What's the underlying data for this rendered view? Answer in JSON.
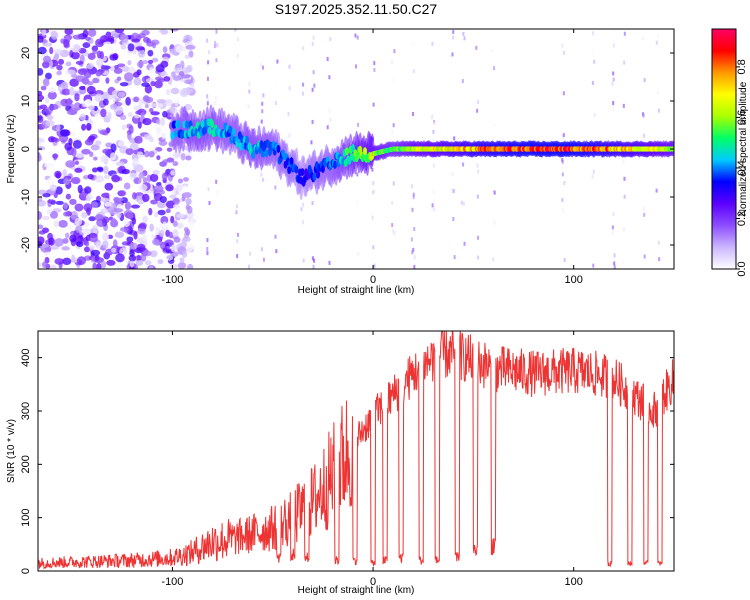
{
  "page": {
    "title": "S197.2025.352.11.50.C27"
  },
  "chart_data": [
    {
      "type": "heatmap",
      "title": "S197.2025.352.11.50.C27",
      "xlabel": "Height of straight line (km)",
      "ylabel": "Frequency (Hz)",
      "xlim": [
        -167,
        150
      ],
      "ylim": [
        -25,
        25
      ],
      "xticks": [
        -100,
        0,
        100
      ],
      "yticks": [
        -20,
        -10,
        0,
        10,
        20
      ],
      "colorbar": {
        "label": "Normalized spectral amplitude",
        "range": [
          0,
          0.95
        ],
        "ticks": [
          "0.0",
          "0.2",
          "0.4",
          "0.6",
          "0.8"
        ],
        "colors": [
          "#ffffff",
          "#cbb6ff",
          "#8d4dff",
          "#5b00ff",
          "#0000ff",
          "#00ccff",
          "#00ff66",
          "#aaff00",
          "#ffff00",
          "#ff9900",
          "#ff0000",
          "#ff0066"
        ]
      },
      "ridge": {
        "x": [
          -100,
          -90,
          -80,
          -70,
          -60,
          -50,
          -40,
          -35,
          -30,
          -20,
          -10,
          0,
          10,
          20,
          40,
          60,
          80,
          100,
          120,
          140,
          150
        ],
        "freq": [
          4,
          4,
          4.5,
          3,
          0,
          0,
          -4,
          -6,
          -5,
          -3,
          -1,
          -1,
          0,
          0,
          0,
          0,
          0,
          0,
          0,
          0,
          0
        ],
        "amplitude": [
          0.45,
          0.5,
          0.5,
          0.45,
          0.5,
          0.45,
          0.4,
          0.35,
          0.4,
          0.45,
          0.6,
          0.7,
          0.6,
          0.7,
          0.8,
          0.9,
          0.95,
          0.95,
          0.85,
          0.75,
          0.7
        ]
      },
      "noise_region": {
        "x_from": -167,
        "x_to": -100,
        "amplitude": 0.3
      }
    },
    {
      "type": "line",
      "xlabel": "Height of straight line (km)",
      "ylabel": "SNR (10 * v/v)",
      "xlim": [
        -167,
        150
      ],
      "ylim": [
        0,
        450
      ],
      "xticks": [
        -100,
        0,
        100
      ],
      "yticks": [
        0,
        100,
        200,
        300,
        400
      ],
      "color": "#ee3333",
      "envelope": {
        "x": [
          -167,
          -120,
          -100,
          -90,
          -80,
          -70,
          -60,
          -50,
          -40,
          -30,
          -20,
          -10,
          0,
          10,
          20,
          30,
          40,
          60,
          80,
          100,
          110,
          120,
          130,
          140,
          150
        ],
        "snr": [
          15,
          20,
          25,
          35,
          55,
          60,
          70,
          80,
          100,
          130,
          180,
          240,
          290,
          330,
          370,
          400,
          410,
          380,
          370,
          375,
          370,
          360,
          330,
          300,
          360
        ]
      },
      "dropouts": [
        {
          "x": -47,
          "snr": 25
        },
        {
          "x": -40,
          "snr": 30
        },
        {
          "x": -33,
          "snr": 25
        },
        {
          "x": -18,
          "snr": 20
        },
        {
          "x": -9,
          "snr": 20
        },
        {
          "x": 0,
          "snr": 15
        },
        {
          "x": 6,
          "snr": 20
        },
        {
          "x": 14,
          "snr": 25
        },
        {
          "x": 24,
          "snr": 20
        },
        {
          "x": 32,
          "snr": 20
        },
        {
          "x": 42,
          "snr": 25
        },
        {
          "x": 51,
          "snr": 40
        },
        {
          "x": 60,
          "snr": 50
        },
        {
          "x": 118,
          "snr": 15
        },
        {
          "x": 128,
          "snr": 15
        },
        {
          "x": 136,
          "snr": 15
        },
        {
          "x": 143,
          "snr": 15
        }
      ]
    }
  ]
}
